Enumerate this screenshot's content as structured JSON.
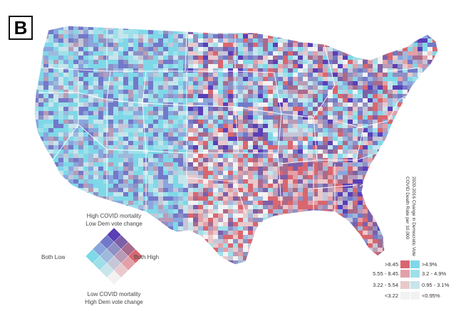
{
  "panel": {
    "letter": "B"
  },
  "diamond_legend": {
    "top": [
      "High COVID mortality",
      "Low Dem vote change"
    ],
    "bottom": [
      "Low COVID mortality",
      "High Dem vote change"
    ],
    "left": "Both Low",
    "right": "Both High"
  },
  "side_legend": {
    "titles": [
      "2020-2016 Change in Democratic Vote",
      "COVID Death Rate per 10,000"
    ],
    "death_rate_labels": [
      ">8.45",
      "5.55 - 8.45",
      "3.22 - 5.54",
      "<3.22"
    ],
    "vote_change_labels": [
      ">4.9%",
      "3.2 - 4.9%",
      "0.95 - 3.1%",
      "<0.95%"
    ]
  },
  "colors": {
    "ocean": "#ffffff",
    "state_border": "#ffffff",
    "bivariate": [
      [
        "#f2f2f2",
        "#c8e5ec",
        "#9ee0ea",
        "#7fd8e8"
      ],
      [
        "#e9c9cc",
        "#c5c7d8",
        "#9fb9dc",
        "#8aa6dd"
      ],
      [
        "#e3a0a8",
        "#b99bb7",
        "#8f90c4",
        "#7279c9"
      ],
      [
        "#d9666f",
        "#a86b8b",
        "#7d5fa8",
        "#5a3fb8"
      ]
    ],
    "death_rate_swatches": [
      "#d9666f",
      "#e3a0a8",
      "#e9c9cc",
      "#f2f2f2"
    ],
    "vote_swatches": [
      "#7fd8e8",
      "#9ee0ea",
      "#c8e5ec",
      "#f2f2f2"
    ]
  }
}
